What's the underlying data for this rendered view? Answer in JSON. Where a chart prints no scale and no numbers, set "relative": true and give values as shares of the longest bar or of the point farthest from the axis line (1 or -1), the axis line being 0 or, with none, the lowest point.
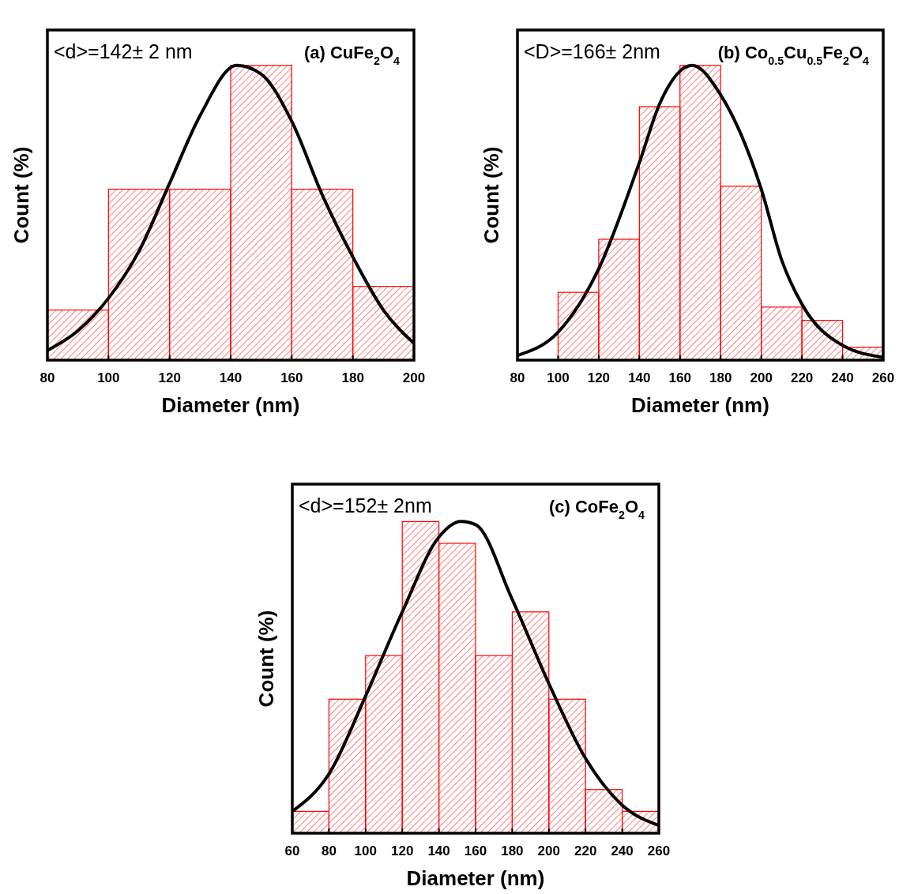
{
  "chart_data": [
    {
      "type": "histogram",
      "title": "(a) CuFe$_{2}$O$_{4}$",
      "annotations": [
        "<d>=142± 2 nm"
      ],
      "xlabel": "Diameter (nm)",
      "ylabel": "Count (%)",
      "relative": true,
      "tick_labels": "x",
      "xlim": [
        80,
        200
      ],
      "xticks": [
        80,
        100,
        120,
        140,
        160,
        180,
        200
      ],
      "bins": [
        80,
        100,
        120,
        140,
        160,
        180,
        200
      ],
      "series": [
        {
          "color": "#ff0000",
          "values": [
            0.17,
            0.58,
            0.58,
            1.0,
            0.58,
            0.25
          ]
        },
        {
          "type": "line",
          "color": "#000000",
          "x": [
            80,
            90,
            100,
            110,
            120,
            130,
            142,
            150,
            160,
            170,
            180,
            190,
            200
          ],
          "values": [
            0.033,
            0.1,
            0.21,
            0.37,
            0.6,
            0.83,
            1.0,
            0.97,
            0.81,
            0.56,
            0.35,
            0.17,
            0.057
          ]
        }
      ]
    },
    {
      "type": "histogram",
      "title": "(b) Co$_{0.5}$Cu$_{0.5}$Fe$_{2}$O$_{4}$",
      "annotations": [
        "<D>=166± 2nm"
      ],
      "xlabel": "Diameter (nm)",
      "ylabel": "Count (%)",
      "relative": true,
      "tick_labels": "x",
      "xlim": [
        80,
        260
      ],
      "xticks": [
        80,
        100,
        120,
        140,
        160,
        180,
        200,
        220,
        240,
        260
      ],
      "bins": [
        100,
        120,
        140,
        160,
        180,
        200,
        220,
        240,
        260
      ],
      "series": [
        {
          "color": "#ff0000",
          "values": [
            0.23,
            0.41,
            0.86,
            1.0,
            0.59,
            0.18,
            0.135,
            0.044
          ]
        },
        {
          "type": "line",
          "color": "#000000",
          "x": [
            80,
            100,
            120,
            140,
            150,
            166,
            180,
            200,
            210,
            220,
            240,
            260
          ],
          "values": [
            0.016,
            0.095,
            0.31,
            0.67,
            0.87,
            1.0,
            0.9,
            0.58,
            0.34,
            0.19,
            0.05,
            0.01
          ]
        }
      ]
    },
    {
      "type": "histogram",
      "title": "(c) CoFe$_{2}$O$_{4}$",
      "annotations": [
        "<d>=152± 2nm"
      ],
      "xlabel": "Diameter (nm)",
      "ylabel": "Count (%)",
      "relative": true,
      "tick_labels": "x",
      "xlim": [
        60,
        260
      ],
      "xticks": [
        60,
        80,
        100,
        120,
        140,
        160,
        180,
        200,
        220,
        240,
        260
      ],
      "bins": [
        60,
        80,
        100,
        120,
        140,
        160,
        180,
        200,
        220,
        240,
        260
      ],
      "series": [
        {
          "color": "#ff0000",
          "values": [
            0.07,
            0.43,
            0.57,
            1.0,
            0.93,
            0.57,
            0.71,
            0.43,
            0.14,
            0.07
          ]
        },
        {
          "type": "line",
          "color": "#000000",
          "x": [
            60,
            80,
            100,
            120,
            140,
            152,
            160,
            180,
            200,
            220,
            240,
            260
          ],
          "values": [
            0.07,
            0.19,
            0.44,
            0.71,
            0.95,
            1.0,
            0.99,
            0.75,
            0.48,
            0.24,
            0.09,
            0.025
          ]
        }
      ]
    }
  ]
}
